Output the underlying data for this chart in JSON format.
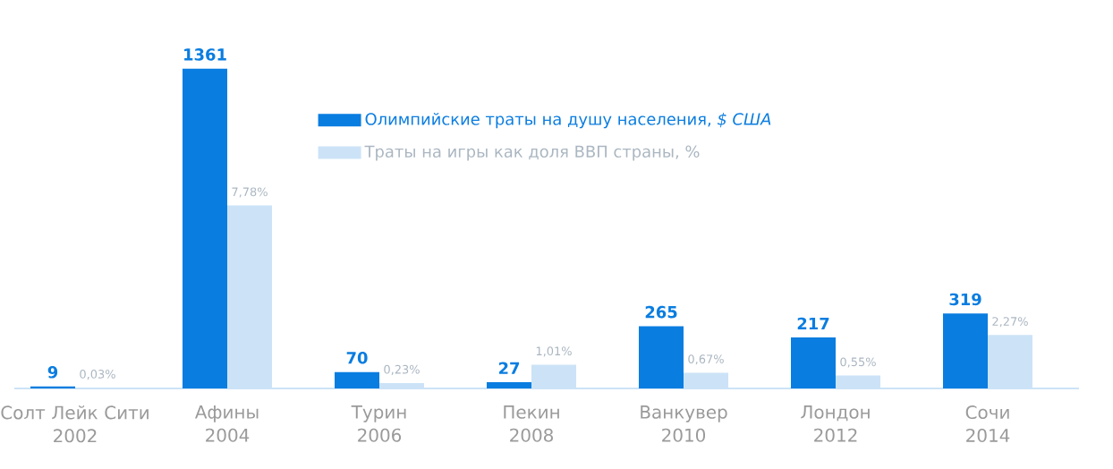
{
  "chart_data": {
    "type": "bar",
    "categories": [
      "Солт Лейк Сити\n2002",
      "Афины\n2004",
      "Турин\n2006",
      "Пекин\n2008",
      "Ванкувер\n2010",
      "Лондон\n2012",
      "Сочи\n2014"
    ],
    "series": [
      {
        "name": "Олимпийские траты на душу населения, *$ США*",
        "color": "#0a7de0",
        "values": [
          9,
          1361,
          70,
          27,
          265,
          217,
          319
        ]
      },
      {
        "name": "Траты на игры как доля ВВП страны, %",
        "color": "#cce3f7",
        "axis": "y2",
        "values": [
          0.03,
          7.78,
          0.23,
          1.01,
          0.67,
          0.55,
          2.27
        ],
        "value_labels": [
          "0,03%",
          "7,78%",
          "0,23%",
          "1,01%",
          "0,67%",
          "0,55%",
          "2,27%"
        ]
      }
    ],
    "data_labels": true,
    "legend": "top"
  }
}
